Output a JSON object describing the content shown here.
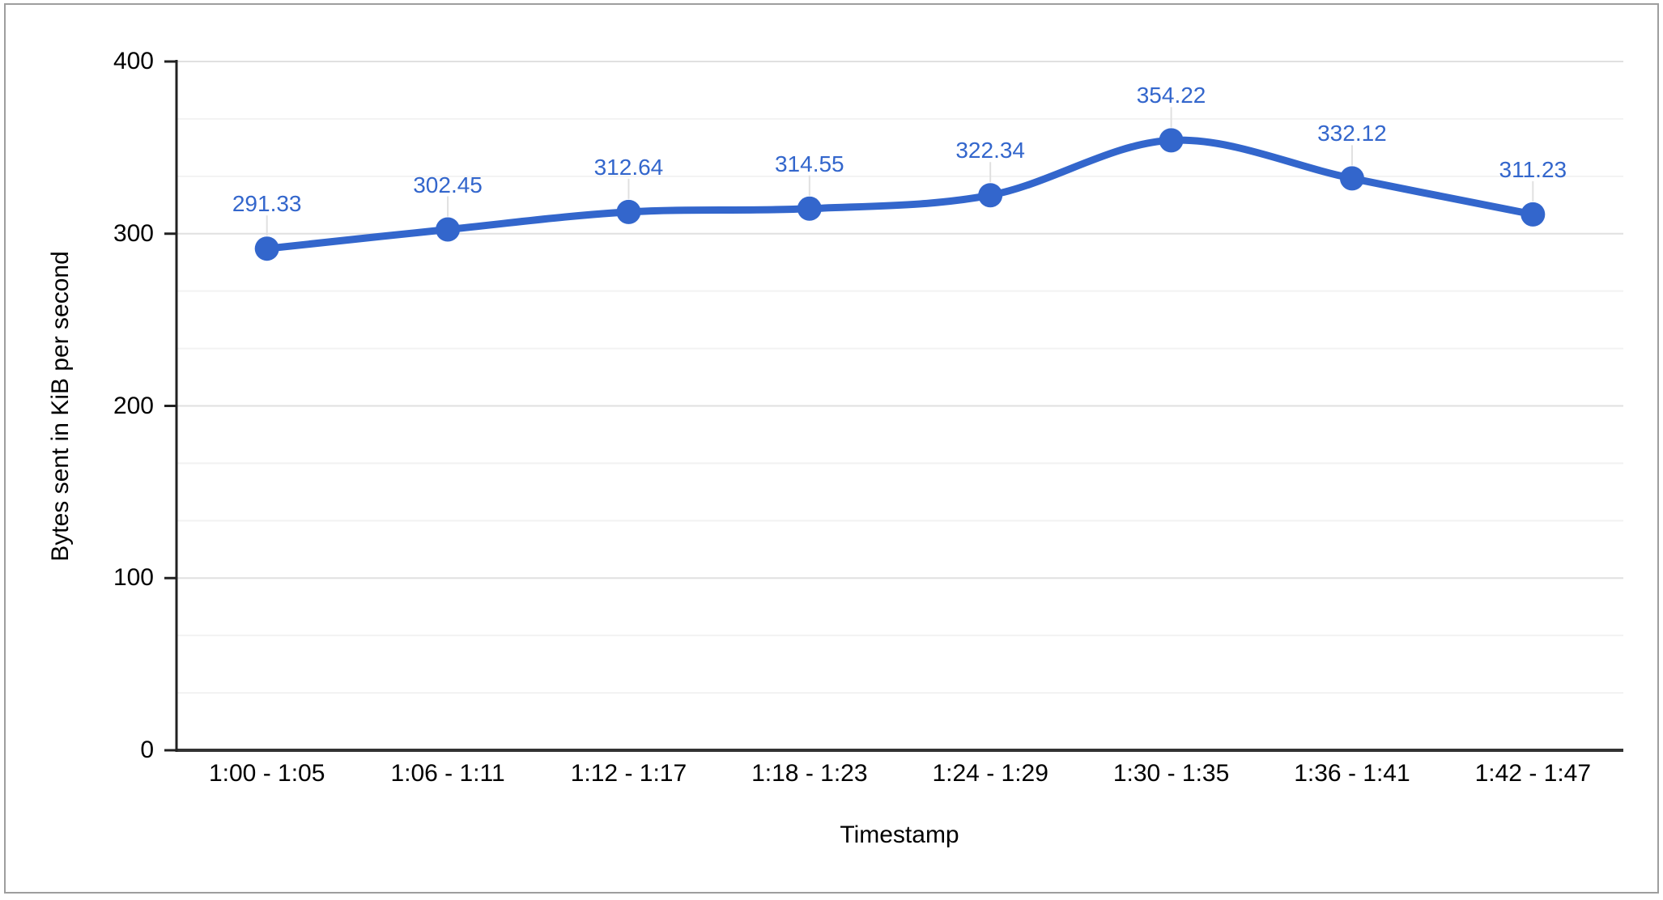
{
  "frame": {
    "border_color": "#9e9e9e",
    "background": "#ffffff"
  },
  "chart_data": {
    "type": "line",
    "title": "",
    "x": [
      "1:00 - 1:05",
      "1:06 - 1:11",
      "1:12 - 1:17",
      "1:18 - 1:23",
      "1:24 - 1:29",
      "1:30 - 1:35",
      "1:36 - 1:41",
      "1:42 - 1:47"
    ],
    "values": [
      291.33,
      302.45,
      312.64,
      314.55,
      322.34,
      354.22,
      332.12,
      311.23
    ],
    "point_labels": [
      "291.33",
      "302.45",
      "312.64",
      "314.55",
      "322.34",
      "354.22",
      "332.12",
      "311.23"
    ],
    "xlabel": "Timestamp",
    "ylabel": "Bytes sent in KiB per second",
    "ylim": [
      0,
      400
    ],
    "yticks": [
      0,
      100,
      200,
      300,
      400
    ],
    "ytick_labels": [
      "0",
      "100",
      "200",
      "300",
      "400"
    ],
    "minor_gridlines_per_interval": 2,
    "grid": true,
    "smooth_line": true,
    "legend_position": "none",
    "colors": {
      "series": "#3366cc",
      "point_label": "#3366cc",
      "major_gridline": "#e0e0e0",
      "minor_gridline": "#f2f2f2",
      "annotation_stem": "#e0e0e0",
      "axis_line": "#212121",
      "baseline": "#333333",
      "tick_text": "#000000"
    }
  }
}
